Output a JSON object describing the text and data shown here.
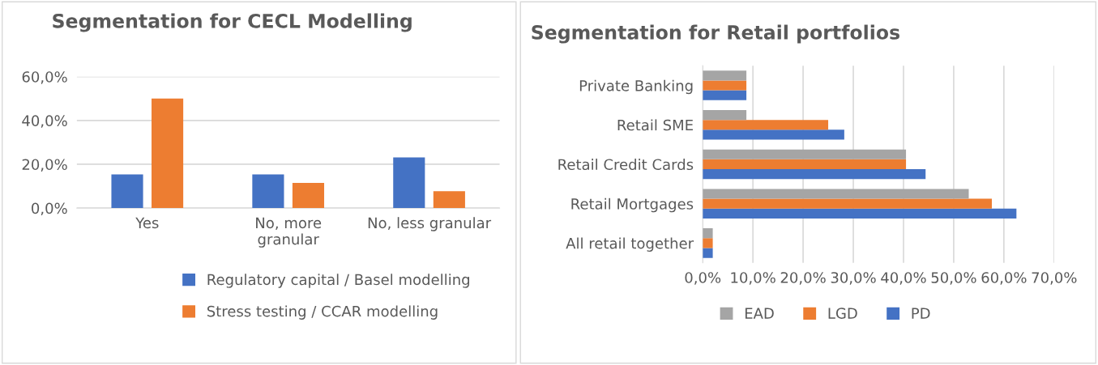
{
  "chart_data": [
    {
      "type": "bar",
      "title": "Segmentation for CECL Modelling",
      "categories": [
        "Yes",
        "No, more\ngranular",
        "No, less granular"
      ],
      "series": [
        {
          "name": "Regulatory capital / Basel modelling",
          "color": "#4472c4",
          "values": [
            15.4,
            15.4,
            23.1
          ]
        },
        {
          "name": "Stress testing / CCAR modelling",
          "color": "#ed7d31",
          "values": [
            50.0,
            11.5,
            7.7
          ]
        }
      ],
      "ylim": [
        0,
        60
      ],
      "yticks": [
        {
          "value": 0,
          "label": "0,0%"
        },
        {
          "value": 20,
          "label": "20,0%"
        },
        {
          "value": 40,
          "label": "40,0%"
        },
        {
          "value": 60,
          "label": "60,0%"
        }
      ],
      "grid": "y",
      "legend": "bottom"
    },
    {
      "type": "bar",
      "orientation": "horizontal",
      "title": "Segmentation for Retail portfolios",
      "categories": [
        "Private Banking",
        "Retail SME",
        "Retail Credit Cards",
        "Retail Mortgages",
        "All retail together"
      ],
      "series": [
        {
          "name": "PD",
          "color": "#4472c4",
          "values": [
            8.7,
            28.2,
            44.4,
            62.5,
            2.0
          ]
        },
        {
          "name": "LGD",
          "color": "#ed7d31",
          "values": [
            8.7,
            25.0,
            40.5,
            57.6,
            2.0
          ]
        },
        {
          "name": "EAD",
          "color": "#a5a5a5",
          "values": [
            8.7,
            8.7,
            40.5,
            53.0,
            2.0
          ]
        }
      ],
      "xlim": [
        0,
        70
      ],
      "xticks": [
        {
          "value": 0,
          "label": "0,0%"
        },
        {
          "value": 10,
          "label": "10,0%"
        },
        {
          "value": 20,
          "label": "20,0%"
        },
        {
          "value": 30,
          "label": "30,0%"
        },
        {
          "value": 40,
          "label": "40,0%"
        },
        {
          "value": 50,
          "label": "50,0%"
        },
        {
          "value": 60,
          "label": "60,0%"
        },
        {
          "value": 70,
          "label": "70,0%"
        }
      ],
      "grid": "x",
      "legend": "bottom"
    }
  ]
}
